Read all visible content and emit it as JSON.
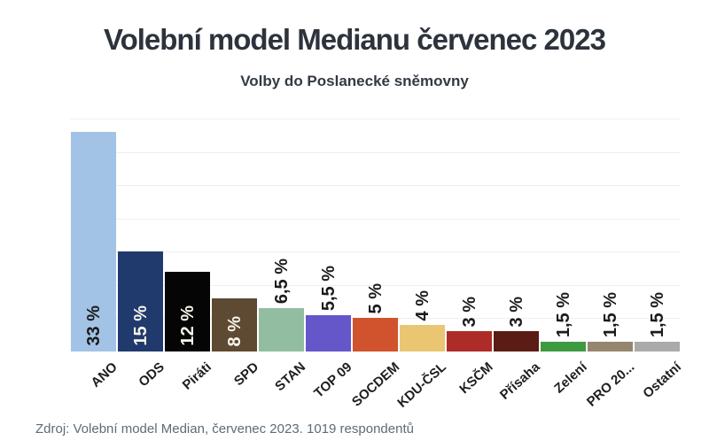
{
  "header": {
    "title": "Volební model Medianu červenec 2023",
    "subtitle": "Volby do Poslanecké sněmovny",
    "text_color": "#2d333c"
  },
  "footer": {
    "source": "Zdroj: Volební model Median, červenec 2023. 1019 respondentů",
    "color": "#5e6b78"
  },
  "chart_data": {
    "type": "bar",
    "title": "Volební model Medianu červenec 2023",
    "subtitle": "Volby do Poslanecké sněmovny",
    "xlabel": "",
    "ylabel": "",
    "ylim": [
      0,
      35
    ],
    "grid": true,
    "grid_interval": 5,
    "grid_color": "#efefef",
    "legend": "none",
    "categories": [
      "ANO",
      "ODS",
      "Piráti",
      "SPD",
      "STAN",
      "TOP 09",
      "SOCDEM",
      "KDU-ČSL",
      "KSČM",
      "Přísaha",
      "Zelení",
      "PRO 20...",
      "Ostatní"
    ],
    "values": [
      33,
      15,
      12,
      8,
      6.5,
      5.5,
      5,
      4,
      3,
      3,
      1.5,
      1.5,
      1.5
    ],
    "bars": [
      {
        "label": "ANO",
        "value": 33,
        "value_label": "33 %",
        "color": "#a2c3e5",
        "value_label_color": "#1b1b1b",
        "value_label_position": "inside"
      },
      {
        "label": "ODS",
        "value": 15,
        "value_label": "15 %",
        "color": "#203a6e",
        "value_label_color": "#f8f4ea",
        "value_label_position": "inside"
      },
      {
        "label": "Piráti",
        "value": 12,
        "value_label": "12 %",
        "color": "#050505",
        "value_label_color": "#f8f4ea",
        "value_label_position": "inside"
      },
      {
        "label": "SPD",
        "value": 8,
        "value_label": "8 %",
        "color": "#5e4a32",
        "value_label_color": "#f8f4ea",
        "value_label_position": "inside"
      },
      {
        "label": "STAN",
        "value": 6.5,
        "value_label": "6,5 %",
        "color": "#92bda1",
        "value_label_color": "#1b1b1b",
        "value_label_position": "outside"
      },
      {
        "label": "TOP 09",
        "value": 5.5,
        "value_label": "5,5 %",
        "color": "#6557c9",
        "value_label_color": "#1b1b1b",
        "value_label_position": "outside"
      },
      {
        "label": "SOCDEM",
        "value": 5,
        "value_label": "5 %",
        "color": "#d1532e",
        "value_label_color": "#1b1b1b",
        "value_label_position": "outside"
      },
      {
        "label": "KDU-ČSL",
        "value": 4,
        "value_label": "4 %",
        "color": "#eac672",
        "value_label_color": "#1b1b1b",
        "value_label_position": "outside"
      },
      {
        "label": "KSČM",
        "value": 3,
        "value_label": "3 %",
        "color": "#ad2c27",
        "value_label_color": "#1b1b1b",
        "value_label_position": "outside"
      },
      {
        "label": "Přísaha",
        "value": 3,
        "value_label": "3 %",
        "color": "#5a1c15",
        "value_label_color": "#1b1b1b",
        "value_label_position": "outside"
      },
      {
        "label": "Zelení",
        "value": 1.5,
        "value_label": "1,5 %",
        "color": "#3e9a40",
        "value_label_color": "#1b1b1b",
        "value_label_position": "outside"
      },
      {
        "label": "PRO 20...",
        "value": 1.5,
        "value_label": "1,5 %",
        "color": "#95866f",
        "value_label_color": "#1b1b1b",
        "value_label_position": "outside"
      },
      {
        "label": "Ostatní",
        "value": 1.5,
        "value_label": "1,5 %",
        "color": "#aaaaaa",
        "value_label_color": "#1b1b1b",
        "value_label_position": "outside"
      }
    ]
  }
}
